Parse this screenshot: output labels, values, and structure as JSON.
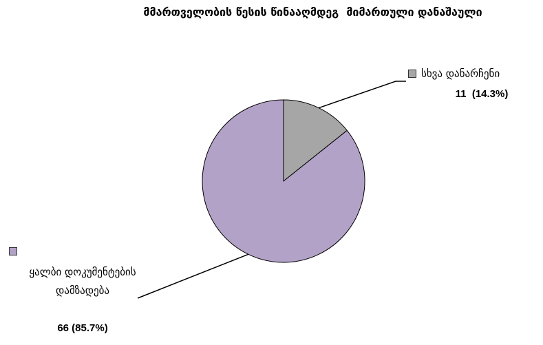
{
  "chart_data": {
    "type": "pie",
    "title": "მმართველობის წესის წინააღმდეგ  მიმართული დანაშაული",
    "categories": [
      "სხვა დანარჩენი",
      "ყალბი დოკუმენტების დამზადება"
    ],
    "values": [
      11,
      66
    ],
    "value_labels": [
      "11  (14.3%)",
      "66 (85.7%)"
    ],
    "colors": [
      "#a6a6a6",
      "#b3a2c7"
    ]
  }
}
